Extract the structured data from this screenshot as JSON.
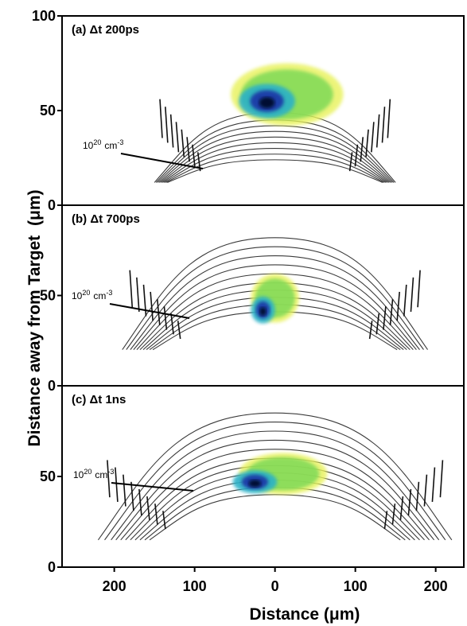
{
  "figure": {
    "ylabel": "Distance away from Target",
    "ylabel_unit": "(μm)",
    "xlabel": "Distance (μm)",
    "x_tick_labels": [
      "200",
      "100",
      "0",
      "100",
      "200"
    ]
  },
  "colors": {
    "contour": "#3a3a3a",
    "density_low": "#e8f25a",
    "density_mid": "#7ed957",
    "density_high": "#2ab1c7",
    "density_peak": "#1a3fa8",
    "density_core": "#050a30"
  },
  "chart_data": [
    {
      "type": "contour",
      "panel": "a",
      "title": "(a) Δt 200ps",
      "annotation": {
        "base": "10",
        "exp": "20",
        "unit": "cm",
        "unit_exp": "-3"
      },
      "x": [
        -200,
        -100,
        0,
        100,
        200
      ],
      "xlim": [
        -265,
        235
      ],
      "ylim": [
        0,
        100
      ],
      "y_tick_labels": [
        "100",
        "50",
        "0"
      ],
      "y_ticks": [
        100,
        50,
        0
      ],
      "contours": [
        {
          "level": 1,
          "base": 12,
          "top": 49,
          "half_width": 150
        },
        {
          "level": 2,
          "base": 12,
          "top": 45,
          "half_width": 148
        },
        {
          "level": 3,
          "base": 12,
          "top": 42,
          "half_width": 146
        },
        {
          "level": 4,
          "base": 12,
          "top": 39,
          "half_width": 144
        },
        {
          "level": 5,
          "base": 12,
          "top": 36,
          "half_width": 142
        },
        {
          "level": 6,
          "base": 12,
          "top": 33,
          "half_width": 140
        },
        {
          "level": 7,
          "base": 12,
          "top": 30,
          "half_width": 138
        },
        {
          "level": 8,
          "base": 12,
          "top": 27,
          "half_width": 136
        },
        {
          "level": 9,
          "base": 12,
          "top": 24,
          "half_width": 134
        }
      ],
      "density_region": {
        "x_range": [
          -55,
          85
        ],
        "y_range": [
          42,
          75
        ],
        "peak_x": -10,
        "peak_y": 55
      }
    },
    {
      "type": "contour",
      "panel": "b",
      "title": "(b) Δt 700ps",
      "annotation": {
        "base": "10",
        "exp": "20",
        "unit": "cm",
        "unit_exp": "-3"
      },
      "x": [
        -200,
        -100,
        0,
        100,
        200
      ],
      "xlim": [
        -265,
        235
      ],
      "ylim": [
        0,
        100
      ],
      "y_tick_labels": [
        "50",
        "0"
      ],
      "y_ticks": [
        50,
        0
      ],
      "contours": [
        {
          "level": 1,
          "base": 20,
          "top": 82,
          "half_width": 190
        },
        {
          "level": 2,
          "base": 20,
          "top": 77,
          "half_width": 185
        },
        {
          "level": 3,
          "base": 20,
          "top": 72,
          "half_width": 180
        },
        {
          "level": 4,
          "base": 20,
          "top": 67,
          "half_width": 176
        },
        {
          "level": 5,
          "base": 20,
          "top": 62,
          "half_width": 172
        },
        {
          "level": 6,
          "base": 20,
          "top": 57,
          "half_width": 168
        },
        {
          "level": 7,
          "base": 20,
          "top": 53,
          "half_width": 164
        },
        {
          "level": 8,
          "base": 20,
          "top": 49,
          "half_width": 160
        },
        {
          "level": 9,
          "base": 20,
          "top": 45,
          "half_width": 156
        },
        {
          "level": 10,
          "base": 20,
          "top": 41,
          "half_width": 152
        }
      ],
      "density_region": {
        "x_range": [
          -30,
          30
        ],
        "y_range": [
          35,
          62
        ],
        "peak_x": -15,
        "peak_y": 42
      }
    },
    {
      "type": "contour",
      "panel": "c",
      "title": "(c) Δt 1ns",
      "annotation": {
        "base": "10",
        "exp": "20",
        "unit": "cm",
        "unit_exp": "-3"
      },
      "x": [
        -200,
        -100,
        0,
        100,
        200
      ],
      "xlim": [
        -265,
        235
      ],
      "ylim": [
        0,
        100
      ],
      "y_tick_labels": [
        "50",
        "0"
      ],
      "y_ticks": [
        50,
        0
      ],
      "contours": [
        {
          "level": 1,
          "base": 15,
          "top": 85,
          "half_width": 220
        },
        {
          "level": 2,
          "base": 15,
          "top": 80,
          "half_width": 212
        },
        {
          "level": 3,
          "base": 15,
          "top": 75,
          "half_width": 204
        },
        {
          "level": 4,
          "base": 15,
          "top": 70,
          "half_width": 198
        },
        {
          "level": 5,
          "base": 15,
          "top": 65,
          "half_width": 192
        },
        {
          "level": 6,
          "base": 15,
          "top": 60,
          "half_width": 186
        },
        {
          "level": 7,
          "base": 15,
          "top": 56,
          "half_width": 180
        },
        {
          "level": 8,
          "base": 15,
          "top": 52,
          "half_width": 174
        },
        {
          "level": 9,
          "base": 15,
          "top": 48,
          "half_width": 168
        },
        {
          "level": 10,
          "base": 15,
          "top": 44,
          "half_width": 162
        },
        {
          "level": 11,
          "base": 15,
          "top": 40,
          "half_width": 156
        }
      ],
      "density_region": {
        "x_range": [
          -45,
          65
        ],
        "y_range": [
          40,
          63
        ],
        "peak_x": -25,
        "peak_y": 47
      }
    }
  ]
}
